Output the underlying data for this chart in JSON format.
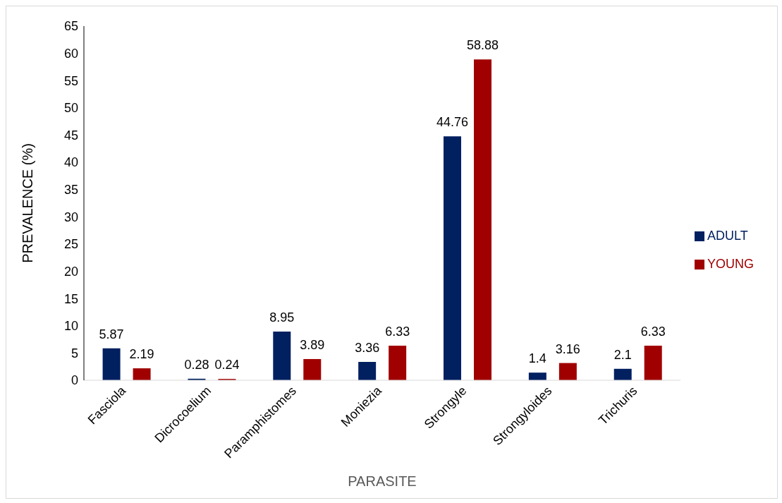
{
  "chart_data": {
    "type": "bar",
    "xlabel": "PARASITE",
    "ylabel": "PREVALENCE (%)",
    "categories": [
      "Fasciola",
      "Dicrocoelium",
      "Paramphistomes",
      "Moniezia",
      "Strongyle",
      "Strongyloides",
      "Trichuris"
    ],
    "series": [
      {
        "name": "ADULT",
        "color": "#002060",
        "values": [
          5.87,
          0.28,
          8.95,
          3.36,
          44.76,
          1.4,
          2.1
        ]
      },
      {
        "name": "YOUNG",
        "color": "#a00000",
        "values": [
          2.19,
          0.24,
          3.89,
          6.33,
          58.88,
          3.16,
          6.33
        ]
      }
    ],
    "ylim": [
      0,
      65
    ],
    "yticks": [
      0,
      5,
      10,
      15,
      20,
      25,
      30,
      35,
      40,
      45,
      50,
      55,
      60,
      65
    ],
    "grid": false,
    "legend": "right",
    "data_labels": true
  }
}
